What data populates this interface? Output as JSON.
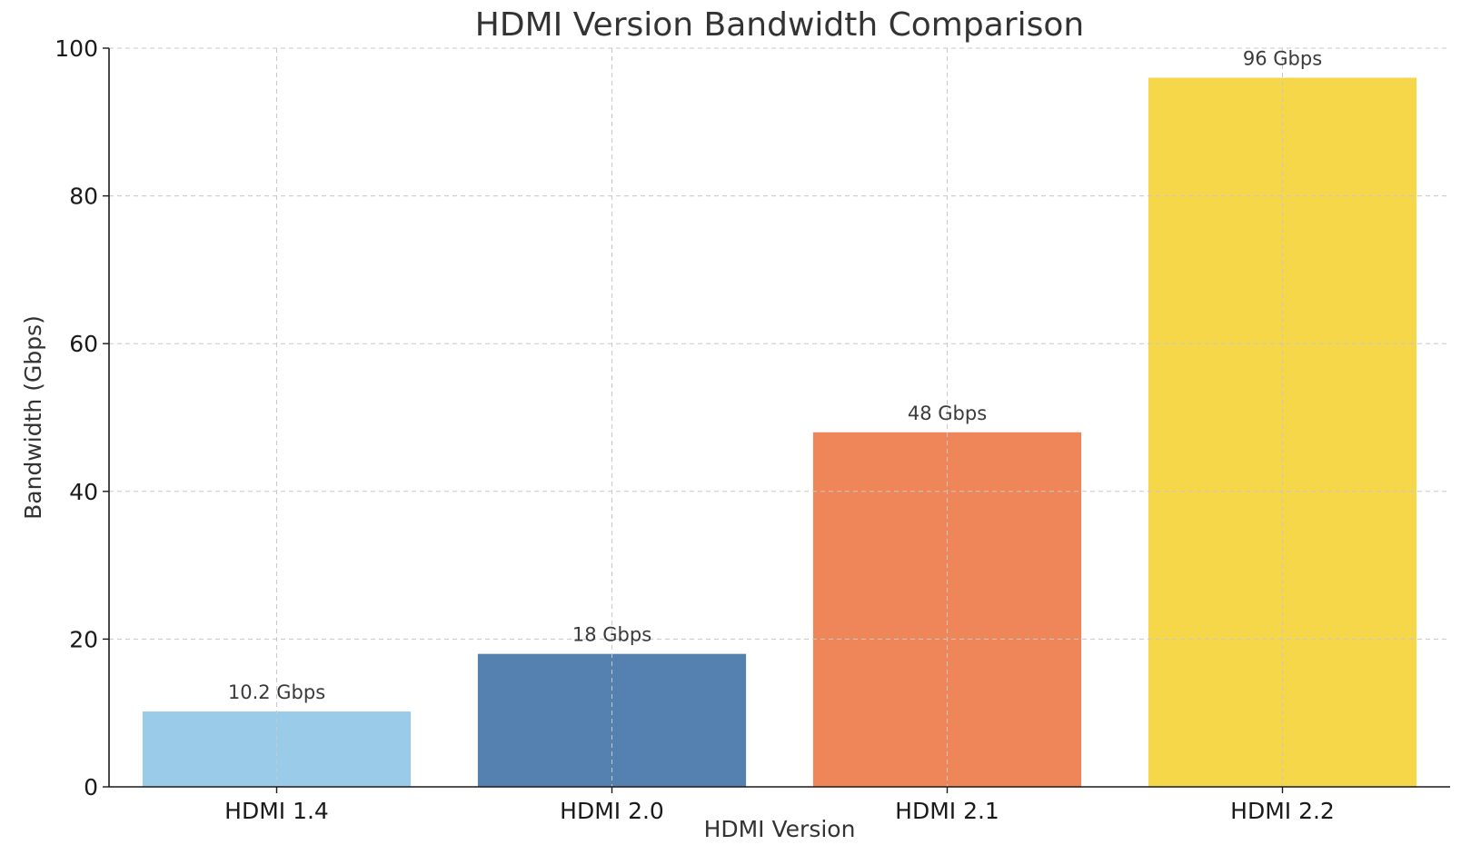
{
  "chart_data": {
    "type": "bar",
    "title": "HDMI Version Bandwidth Comparison",
    "xlabel": "HDMI Version",
    "ylabel": "Bandwidth (Gbps)",
    "categories": [
      "HDMI 1.4",
      "HDMI 2.0",
      "HDMI 2.1",
      "HDMI 2.2"
    ],
    "values": [
      10.2,
      18,
      48,
      96
    ],
    "data_labels": [
      "10.2 Gbps",
      "18 Gbps",
      "48 Gbps",
      "96 Gbps"
    ],
    "colors": [
      "#9acbe8",
      "#5581b0",
      "#ef865a",
      "#f6d74a"
    ],
    "ylim": [
      0,
      100
    ],
    "yticks": [
      0,
      20,
      40,
      60,
      80,
      100
    ],
    "ytick_labels": [
      "0",
      "20",
      "40",
      "60",
      "80",
      "100"
    ],
    "grid": true,
    "legend": "none"
  }
}
